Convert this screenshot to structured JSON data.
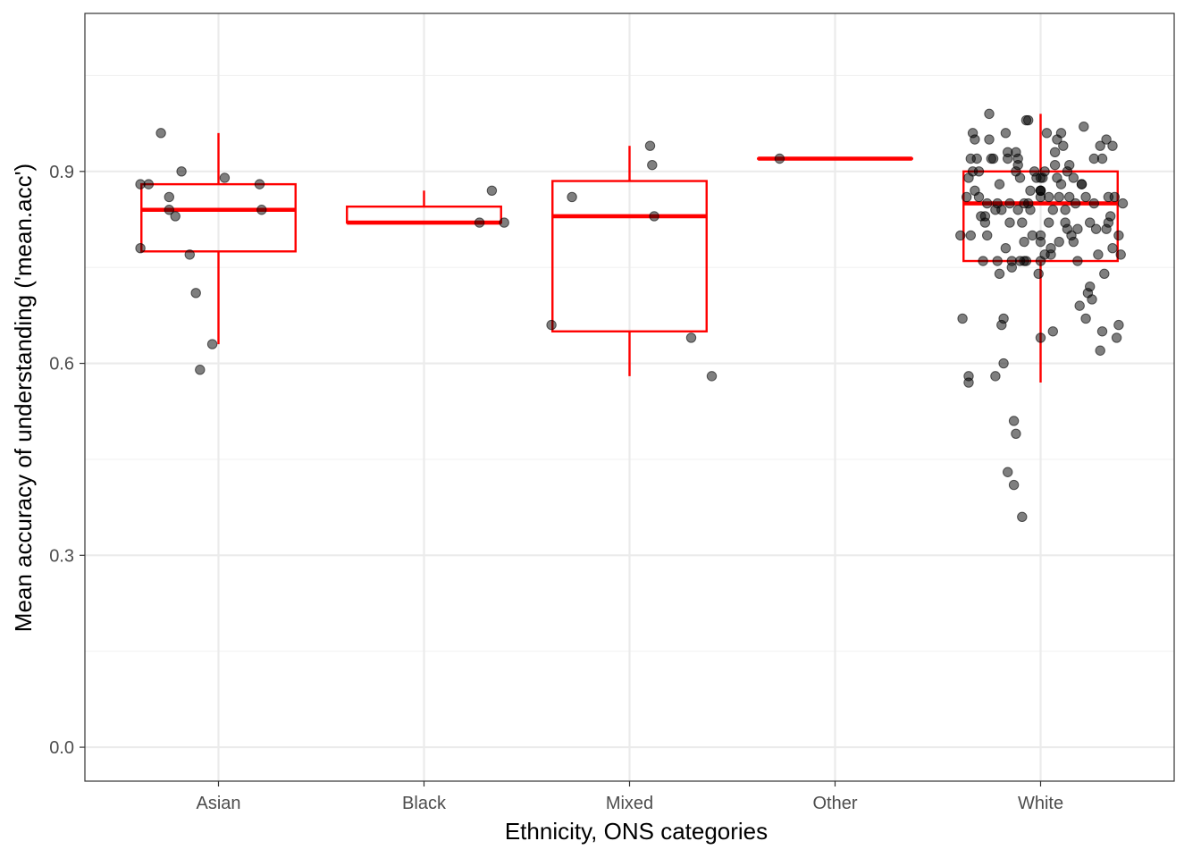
{
  "chart_data": {
    "type": "boxplot",
    "xlabel": "Ethnicity, ONS categories",
    "ylabel": "Mean accuracy of understanding ('mean.acc')",
    "categories": [
      "Asian",
      "Black",
      "Mixed",
      "Other",
      "White"
    ],
    "ylim": [
      -0.053,
      1.147
    ],
    "yticks": [
      0.0,
      0.3,
      0.6,
      0.9
    ],
    "ytick_labels": [
      "0.0",
      "0.3",
      "0.6",
      "0.9"
    ],
    "grid": true,
    "legend": "none",
    "colors": {
      "box": "#ff0000",
      "points": "#000000",
      "grid_major": "#ebebeb",
      "grid_minor": "#f2f2f2",
      "panel_border": "#333333"
    },
    "boxes": [
      {
        "category": "Asian",
        "lower_whisker": 0.63,
        "q1": 0.775,
        "median": 0.84,
        "q3": 0.88,
        "upper_whisker": 0.96
      },
      {
        "category": "Black",
        "lower_whisker": 0.82,
        "q1": 0.82,
        "median": 0.82,
        "q3": 0.845,
        "upper_whisker": 0.87
      },
      {
        "category": "Mixed",
        "lower_whisker": 0.58,
        "q1": 0.65,
        "median": 0.83,
        "q3": 0.885,
        "upper_whisker": 0.94
      },
      {
        "category": "Other",
        "lower_whisker": 0.92,
        "q1": 0.92,
        "median": 0.92,
        "q3": 0.92,
        "upper_whisker": 0.92
      },
      {
        "category": "White",
        "lower_whisker": 0.57,
        "q1": 0.76,
        "median": 0.85,
        "q3": 0.9,
        "upper_whisker": 0.99
      }
    ],
    "points": [
      {
        "category": "Asian",
        "jitter": [
          -0.38,
          -0.34,
          -0.28,
          -0.24,
          -0.24,
          -0.21,
          -0.18,
          -0.14,
          -0.11,
          -0.09,
          0.03,
          0.2,
          0.21,
          -0.38,
          -0.03
        ],
        "y": [
          0.78,
          0.88,
          0.96,
          0.86,
          0.84,
          0.83,
          0.9,
          0.77,
          0.71,
          0.59,
          0.89,
          0.88,
          0.84,
          0.88,
          0.63
        ]
      },
      {
        "category": "Black",
        "jitter": [
          0.27,
          0.33,
          0.39
        ],
        "y": [
          0.82,
          0.87,
          0.82
        ]
      },
      {
        "category": "Mixed",
        "jitter": [
          -0.38,
          -0.28,
          0.1,
          0.11,
          0.12,
          0.3,
          0.4
        ],
        "y": [
          0.66,
          0.86,
          0.94,
          0.91,
          0.83,
          0.64,
          0.58
        ]
      },
      {
        "category": "Other",
        "jitter": [
          -0.27
        ],
        "y": [
          0.92
        ]
      },
      {
        "category": "White",
        "jitter": [
          -0.39,
          -0.38,
          -0.35,
          -0.35,
          -0.34,
          -0.33,
          -0.32,
          -0.31,
          -0.3,
          -0.29,
          -0.28,
          -0.27,
          -0.26,
          -0.25,
          -0.23,
          -0.22,
          -0.21,
          -0.2,
          -0.19,
          -0.18,
          -0.17,
          -0.16,
          -0.15,
          -0.14,
          -0.13,
          -0.12,
          -0.11,
          -0.1,
          -0.09,
          -0.08,
          -0.07,
          -0.06,
          -0.05,
          -0.04,
          -0.03,
          -0.02,
          -0.01,
          0.0,
          0.01,
          0.02,
          0.03,
          0.04,
          0.05,
          0.06,
          0.07,
          0.08,
          0.09,
          0.1,
          0.11,
          0.12,
          0.13,
          0.14,
          0.15,
          0.16,
          0.17,
          0.18,
          0.19,
          0.2,
          0.21,
          0.22,
          0.23,
          0.24,
          0.25,
          0.26,
          0.27,
          0.28,
          0.29,
          0.3,
          0.31,
          0.32,
          0.33,
          0.34,
          0.35,
          0.36,
          0.37,
          0.38,
          0.39,
          0.4,
          -0.33,
          -0.32,
          -0.25,
          -0.24,
          -0.2,
          -0.19,
          -0.15,
          -0.14,
          -0.12,
          -0.11,
          -0.1,
          -0.08,
          -0.06,
          0.05,
          0.06,
          0.07,
          0.1,
          0.14,
          0.3,
          0.35,
          0.38,
          -0.35,
          -0.3,
          -0.22,
          -0.18,
          -0.16,
          -0.13,
          -0.09,
          -0.07,
          0.02,
          0.08,
          0.12,
          0.18,
          0.22,
          0.26,
          0.29,
          -0.34,
          -0.27,
          -0.17,
          -0.11,
          -0.05,
          0.04,
          0.09,
          0.16,
          0.24,
          0.33,
          -0.36,
          -0.26,
          -0.21,
          -0.16,
          -0.12,
          -0.08,
          0.0,
          0.13,
          0.2,
          0.32
        ],
        "y": [
          0.8,
          0.67,
          0.58,
          0.57,
          0.92,
          0.96,
          0.95,
          0.92,
          0.9,
          0.83,
          0.76,
          0.82,
          0.8,
          0.99,
          0.92,
          0.84,
          0.76,
          0.74,
          0.66,
          0.67,
          0.96,
          0.93,
          0.85,
          0.76,
          0.51,
          0.49,
          0.92,
          0.89,
          0.82,
          0.76,
          0.98,
          0.98,
          0.84,
          0.8,
          0.9,
          0.89,
          0.74,
          0.64,
          0.89,
          0.9,
          0.96,
          0.86,
          0.77,
          0.65,
          0.93,
          0.89,
          0.86,
          0.96,
          0.94,
          0.84,
          0.81,
          0.91,
          0.8,
          0.89,
          0.85,
          0.81,
          0.69,
          0.88,
          0.97,
          0.67,
          0.71,
          0.72,
          0.7,
          0.85,
          0.81,
          0.77,
          0.62,
          0.65,
          0.74,
          0.81,
          0.82,
          0.83,
          0.78,
          0.86,
          0.64,
          0.66,
          0.77,
          0.85,
          0.9,
          0.87,
          0.95,
          0.92,
          0.88,
          0.84,
          0.82,
          0.75,
          0.93,
          0.84,
          0.76,
          0.85,
          0.85,
          0.78,
          0.84,
          0.91,
          0.88,
          0.86,
          0.92,
          0.94,
          0.8,
          0.89,
          0.86,
          0.58,
          0.6,
          0.43,
          0.41,
          0.36,
          0.76,
          0.77,
          0.95,
          0.82,
          0.76,
          0.86,
          0.92,
          0.94,
          0.8,
          0.83,
          0.78,
          0.91,
          0.87,
          0.82,
          0.79,
          0.79,
          0.82,
          0.86,
          0.86,
          0.85,
          0.85,
          0.92,
          0.9,
          0.79,
          0.79,
          0.9,
          0.88,
          0.95,
          0.87,
          0.87,
          0.76,
          0.89,
          0.86,
          0.87,
          0.8
        ]
      }
    ]
  }
}
